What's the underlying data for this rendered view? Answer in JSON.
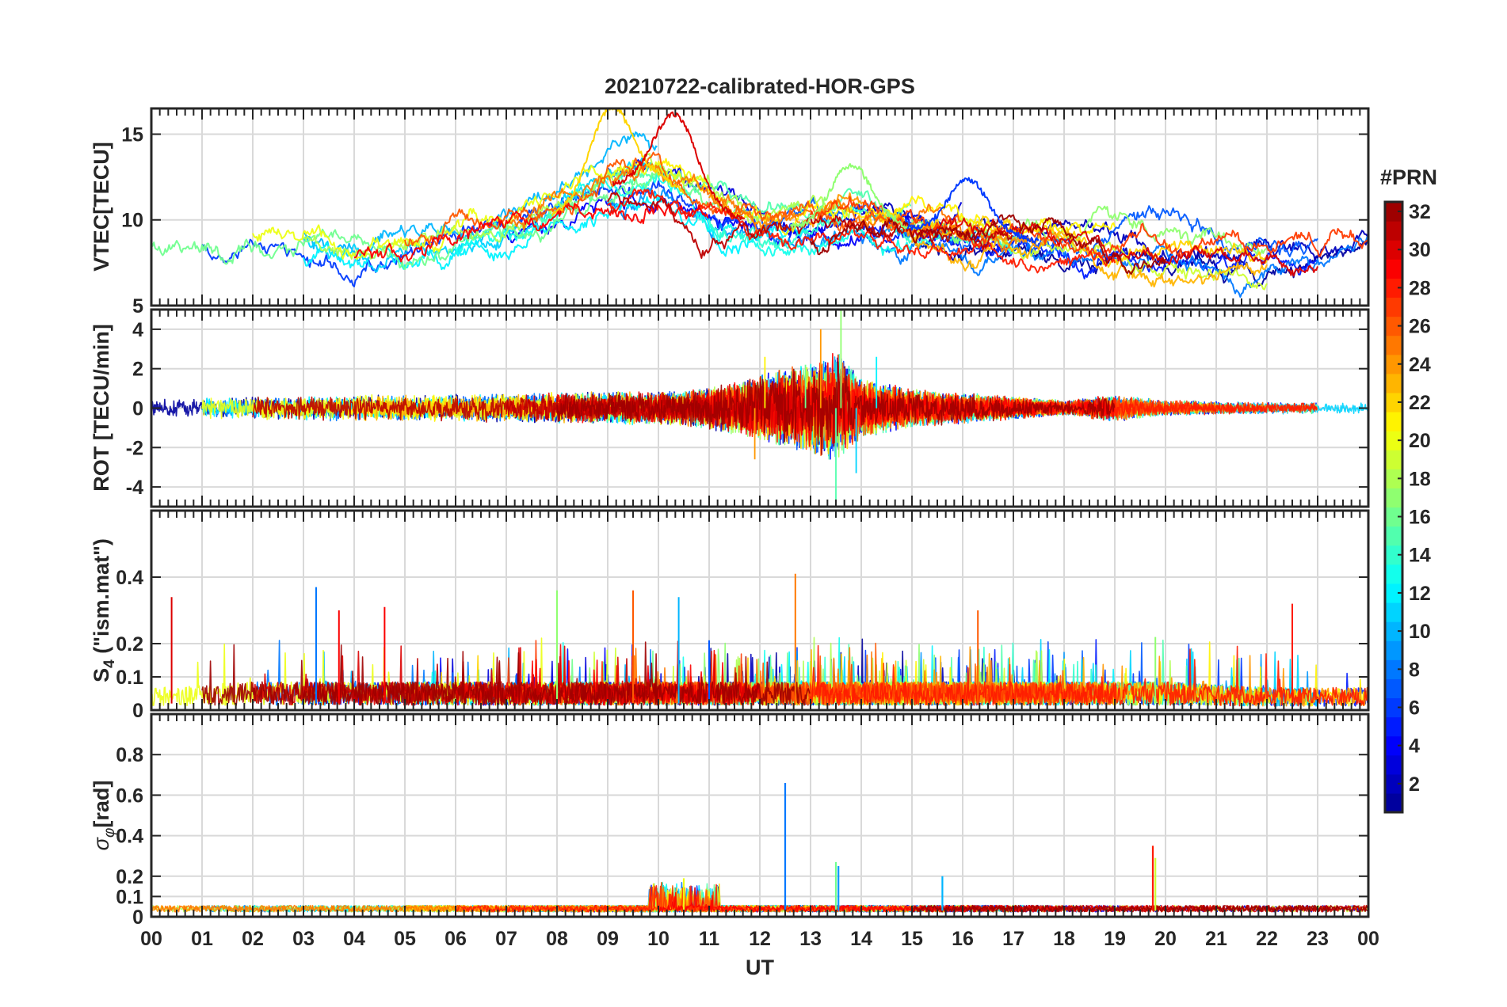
{
  "chart_data": {
    "type": "line",
    "title": "20210722-calibrated-HOR-GPS",
    "xlabel": "UT",
    "x_ticks": [
      "00",
      "01",
      "02",
      "03",
      "04",
      "05",
      "06",
      "07",
      "08",
      "09",
      "10",
      "11",
      "12",
      "13",
      "14",
      "15",
      "16",
      "17",
      "18",
      "19",
      "20",
      "21",
      "22",
      "23",
      "00"
    ],
    "xlim": [
      0,
      24
    ],
    "grid": true,
    "panels": [
      {
        "id": "vtec",
        "ylabel": "VTEC[TECU]",
        "ylim": [
          5,
          16.5
        ],
        "yticks": [
          5,
          10,
          15
        ],
        "ytick_labels": [
          "5",
          "10",
          "15"
        ],
        "hidden_tick_labels": [
          5
        ],
        "hours": [
          0,
          1,
          2,
          3,
          4,
          5,
          6,
          7,
          8,
          9,
          10,
          11,
          12,
          13,
          14,
          15,
          16,
          17,
          18,
          19,
          20,
          21,
          22,
          23,
          24
        ],
        "typical": [
          8.5,
          8.5,
          8.7,
          8.7,
          8.2,
          8.3,
          8.9,
          9.4,
          10.3,
          12.0,
          12.5,
          10.8,
          9.6,
          9.6,
          10.0,
          9.5,
          9.2,
          9.0,
          8.5,
          8.3,
          8.1,
          7.9,
          7.9,
          8.0,
          8.2
        ],
        "spread": [
          1.2,
          1.4,
          1.5,
          1.5,
          1.5,
          1.5,
          1.6,
          1.8,
          2.2,
          2.5,
          2.6,
          2.0,
          1.6,
          1.8,
          1.6,
          1.4,
          1.5,
          1.4,
          1.3,
          1.3,
          1.3,
          1.2,
          1.1,
          1.1,
          1.1
        ],
        "peaks": [
          {
            "x": 9.1,
            "y": 16.6
          },
          {
            "x": 10.3,
            "y": 16.2
          },
          {
            "x": 13.8,
            "y": 13.2
          },
          {
            "x": 16.1,
            "y": 12.4
          }
        ]
      },
      {
        "id": "rot",
        "ylabel": "ROT [TECU/min]",
        "ylim": [
          -5,
          5
        ],
        "yticks": [
          -4,
          -2,
          0,
          2,
          4
        ],
        "ytick_labels": [
          "-4",
          "-2",
          "0",
          "2",
          "4"
        ],
        "hours": [
          0,
          2,
          4,
          6,
          8,
          10,
          11,
          12,
          13,
          13.5,
          14,
          15,
          16,
          17,
          18,
          19,
          20,
          22,
          24
        ],
        "amplitude": [
          0.5,
          0.6,
          0.7,
          0.7,
          0.8,
          0.9,
          1.1,
          1.8,
          2.4,
          3.0,
          1.6,
          1.0,
          0.8,
          0.6,
          0.4,
          0.7,
          0.4,
          0.3,
          0.3
        ],
        "spikes": [
          {
            "x": 12.9,
            "y": 2.2
          },
          {
            "x": 13.2,
            "y": 4.0
          },
          {
            "x": 13.5,
            "y": -4.8
          },
          {
            "x": 13.6,
            "y": 5.0
          },
          {
            "x": 13.9,
            "y": -3.3
          },
          {
            "x": 14.3,
            "y": 2.6
          },
          {
            "x": 11.9,
            "y": -2.6
          },
          {
            "x": 12.1,
            "y": 2.6
          }
        ]
      },
      {
        "id": "s4",
        "ylabel": "S4 (\"ism.mat\")",
        "ylabel_main": "S",
        "ylabel_sub": "4",
        "ylabel_rest": " (\"ism.mat\")",
        "ylim": [
          0,
          0.6
        ],
        "yticks": [
          0,
          0.1,
          0.2,
          0.4
        ],
        "ytick_labels": [
          "0",
          "0.1",
          "0.2",
          "0.4"
        ],
        "hours": [
          0,
          2,
          4,
          6,
          8,
          10,
          12,
          14,
          16,
          18,
          20,
          22,
          24
        ],
        "baseline": [
          0.04,
          0.05,
          0.05,
          0.05,
          0.05,
          0.05,
          0.05,
          0.05,
          0.05,
          0.05,
          0.05,
          0.04,
          0.04
        ],
        "spikes": [
          {
            "x": 0.4,
            "y": 0.34
          },
          {
            "x": 3.25,
            "y": 0.37
          },
          {
            "x": 3.7,
            "y": 0.3
          },
          {
            "x": 4.6,
            "y": 0.31
          },
          {
            "x": 8.0,
            "y": 0.36
          },
          {
            "x": 9.5,
            "y": 0.36
          },
          {
            "x": 10.4,
            "y": 0.34
          },
          {
            "x": 12.7,
            "y": 0.41
          },
          {
            "x": 16.3,
            "y": 0.3
          },
          {
            "x": 22.5,
            "y": 0.32
          },
          {
            "x": 11.0,
            "y": 0.21
          },
          {
            "x": 19.8,
            "y": 0.22
          }
        ]
      },
      {
        "id": "sigma",
        "ylabel": "σφ[rad]",
        "ylabel_main": "σ",
        "ylabel_sub": "φ",
        "ylabel_rest": "[rad]",
        "ylim": [
          0,
          1
        ],
        "yticks": [
          0,
          0.1,
          0.2,
          0.4,
          0.6,
          0.8
        ],
        "ytick_labels": [
          "0",
          "0.1",
          "0.2",
          "0.4",
          "0.6",
          "0.8"
        ],
        "baseline": 0.04,
        "spikes": [
          {
            "x": 12.5,
            "y": 0.66
          },
          {
            "x": 13.5,
            "y": 0.27
          },
          {
            "x": 19.75,
            "y": 0.35
          },
          {
            "x": 19.8,
            "y": 0.29
          },
          {
            "x": 15.6,
            "y": 0.2
          },
          {
            "x": 13.55,
            "y": 0.25
          },
          {
            "x": 10.5,
            "y": 0.19
          }
        ]
      }
    ],
    "series": [
      {
        "name_prefix": "PRN",
        "count": 32,
        "note": "one satellite track per PRN, coloured by PRN on a jet colormap"
      }
    ],
    "colorbar": {
      "title": "#PRN",
      "range": [
        1,
        32
      ],
      "ticks": [
        2,
        4,
        6,
        8,
        10,
        12,
        14,
        16,
        18,
        20,
        22,
        24,
        26,
        28,
        30,
        32
      ],
      "tick_labels": [
        "2",
        "4",
        "6",
        "8",
        "10",
        "12",
        "14",
        "16",
        "18",
        "20",
        "22",
        "24",
        "26",
        "28",
        "30",
        "32"
      ],
      "colormap": "jet"
    }
  },
  "colors": {
    "axis": "#262626",
    "grid": "#d9d9d9"
  }
}
